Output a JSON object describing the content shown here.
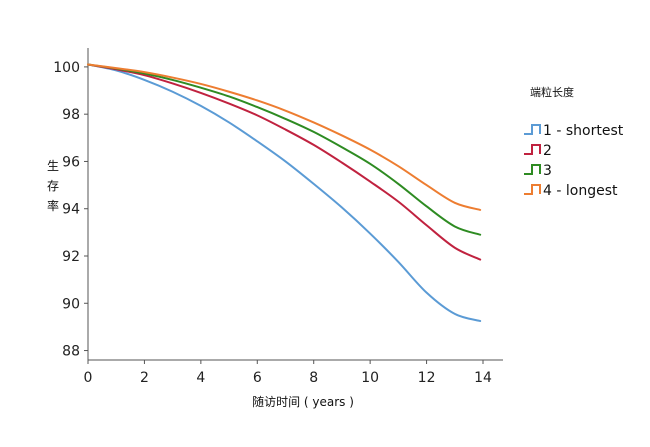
{
  "chart_data": {
    "type": "line",
    "title": "",
    "xlabel": "随访时间 ( years )",
    "ylabel": "生存率",
    "ylabel_chars": [
      "生",
      "存",
      "率"
    ],
    "xlim": [
      0,
      14
    ],
    "ylim": [
      87.6,
      100.8
    ],
    "x_ticks": [
      0,
      2,
      4,
      6,
      8,
      10,
      12,
      14
    ],
    "y_ticks": [
      88,
      90,
      92,
      94,
      96,
      98,
      100
    ],
    "grid": false,
    "legend": {
      "title": "端粒长度",
      "placement": "right",
      "entries": [
        "1 - shortest",
        "2",
        "3",
        "4 - longest"
      ]
    },
    "x": [
      0,
      1,
      2,
      3,
      4,
      5,
      6,
      7,
      8,
      9,
      10,
      11,
      12,
      13,
      13.9
    ],
    "series": [
      {
        "name": "1 - shortest",
        "color": "#5b9bd5",
        "values": [
          100.1,
          99.85,
          99.45,
          98.95,
          98.35,
          97.65,
          96.85,
          96.0,
          95.05,
          94.05,
          92.95,
          91.75,
          90.45,
          89.55,
          89.25
        ]
      },
      {
        "name": "2",
        "color": "#c0223f",
        "values": [
          100.1,
          99.9,
          99.65,
          99.3,
          98.9,
          98.45,
          97.95,
          97.35,
          96.7,
          95.95,
          95.15,
          94.3,
          93.3,
          92.35,
          91.85
        ]
      },
      {
        "name": "3",
        "color": "#2e8b22",
        "values": [
          100.1,
          99.93,
          99.72,
          99.45,
          99.12,
          98.75,
          98.3,
          97.8,
          97.25,
          96.6,
          95.9,
          95.05,
          94.1,
          93.25,
          92.9
        ]
      },
      {
        "name": "4 - longest",
        "color": "#ed7d31",
        "values": [
          100.1,
          99.95,
          99.78,
          99.55,
          99.28,
          98.95,
          98.58,
          98.15,
          97.65,
          97.1,
          96.5,
          95.8,
          95.0,
          94.25,
          93.95
        ]
      }
    ]
  }
}
